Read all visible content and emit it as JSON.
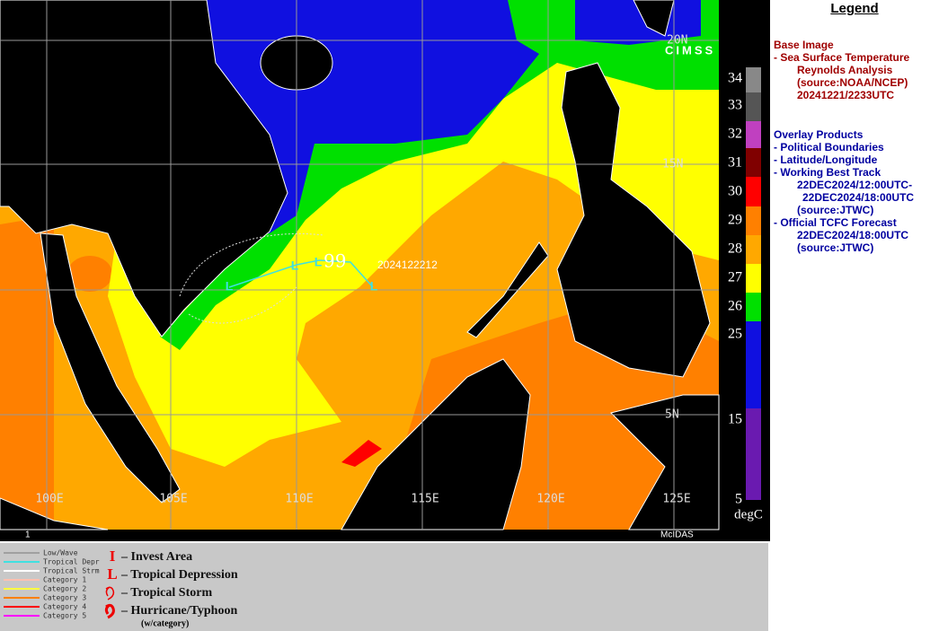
{
  "map": {
    "lat_labels": [
      "20N",
      "15N",
      "5N"
    ],
    "lon_labels": [
      "100E",
      "105E",
      "110E",
      "115E",
      "120E",
      "125E"
    ],
    "frame_number": "1",
    "software": "McIDAS",
    "track_time": "2024122212",
    "track_marker": "L",
    "logo_text": "CIMSS"
  },
  "colorbar": {
    "ticks": [
      "34",
      "33",
      "32",
      "31",
      "30",
      "29",
      "28",
      "27",
      "26",
      "25",
      "15",
      "5"
    ],
    "unit": "degC"
  },
  "legend": {
    "title": "Legend",
    "base_image": {
      "heading": "Base Image",
      "product": "-  Sea Surface Temperature",
      "lines": [
        "Reynolds Analysis",
        "(source:NOAA/NCEP)",
        "20241221/2233UTC"
      ]
    },
    "overlay": {
      "heading": "Overlay Products",
      "items": [
        "-  Political Boundaries",
        "-  Latitude/Longitude",
        "-  Working Best Track"
      ],
      "best_track_lines": [
        "22DEC2024/12:00UTC-",
        "22DEC2024/18:00UTC",
        "(source:JTWC)"
      ],
      "forecast": "-  Official TCFC Forecast",
      "forecast_lines": [
        "22DEC2024/18:00UTC",
        "(source:JTWC)"
      ]
    }
  },
  "track_legend": [
    {
      "label": "Low/Wave",
      "color": "#a0a0a0"
    },
    {
      "label": "Tropical Depr",
      "color": "#40e0e0"
    },
    {
      "label": "Tropical Strm",
      "color": "#ffffff"
    },
    {
      "label": "Category 1",
      "color": "#ffc0b0"
    },
    {
      "label": "Category 2",
      "color": "#ffff40"
    },
    {
      "label": "Category 3",
      "color": "#ff8000"
    },
    {
      "label": "Category 4",
      "color": "#ff0000"
    },
    {
      "label": "Category 5",
      "color": "#ff00ff"
    }
  ],
  "symbol_legend": [
    {
      "symbol": "I",
      "label": "– Invest Area"
    },
    {
      "symbol": "L",
      "label": "– Tropical Depression"
    },
    {
      "label": "– Tropical Storm"
    },
    {
      "label": "– Hurricane/Typhoon"
    }
  ],
  "symbol_note": "(w/category)"
}
